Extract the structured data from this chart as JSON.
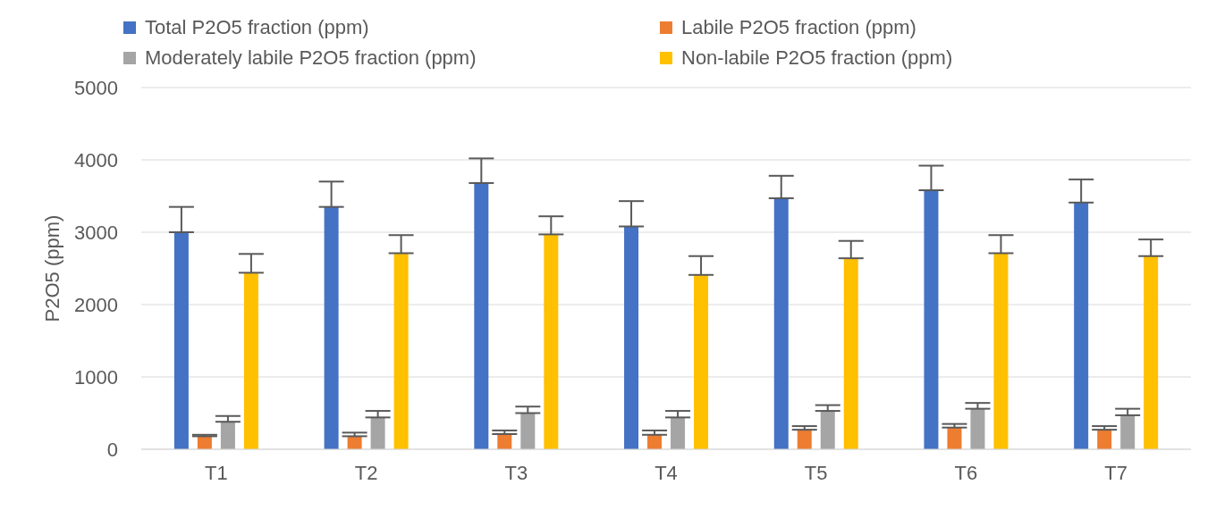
{
  "chart_data": {
    "type": "bar",
    "ylabel": "P2O5 (ppm)",
    "categories": [
      "T1",
      "T2",
      "T3",
      "T4",
      "T5",
      "T6",
      "T7"
    ],
    "series": [
      {
        "name": "Total P2O5 fraction (ppm)",
        "color": "#4472c4",
        "values": [
          3000,
          3350,
          3680,
          3080,
          3470,
          3580,
          3410
        ],
        "errors": [
          [
            3000,
            3350
          ],
          [
            3350,
            3700
          ],
          [
            3680,
            4020
          ],
          [
            3080,
            3430
          ],
          [
            3470,
            3780
          ],
          [
            3580,
            3920
          ],
          [
            3410,
            3730
          ]
        ]
      },
      {
        "name": "Labile P2O5 fraction (ppm)",
        "color": "#ed7d31",
        "values": [
          180,
          180,
          210,
          200,
          270,
          300,
          270
        ],
        "errors": [
          [
            180,
            200
          ],
          [
            180,
            230
          ],
          [
            210,
            260
          ],
          [
            200,
            260
          ],
          [
            270,
            320
          ],
          [
            300,
            350
          ],
          [
            270,
            320
          ]
        ]
      },
      {
        "name": "Moderately labile P2O5 fraction (ppm)",
        "color": "#a5a5a5",
        "values": [
          380,
          440,
          500,
          440,
          530,
          560,
          470
        ],
        "errors": [
          [
            380,
            460
          ],
          [
            440,
            530
          ],
          [
            500,
            590
          ],
          [
            440,
            530
          ],
          [
            530,
            610
          ],
          [
            560,
            640
          ],
          [
            470,
            560
          ]
        ]
      },
      {
        "name": "Non-labile P2O5 fraction (ppm)",
        "color": "#ffc000",
        "values": [
          2440,
          2710,
          2970,
          2410,
          2640,
          2710,
          2670
        ],
        "errors": [
          [
            2440,
            2700
          ],
          [
            2710,
            2960
          ],
          [
            2970,
            3220
          ],
          [
            2410,
            2670
          ],
          [
            2640,
            2880
          ],
          [
            2710,
            2960
          ],
          [
            2670,
            2900
          ]
        ]
      }
    ],
    "ylim": [
      0,
      5000
    ],
    "yticks": [
      0,
      1000,
      2000,
      3000,
      4000,
      5000
    ],
    "grid": "y",
    "legend": "top"
  }
}
